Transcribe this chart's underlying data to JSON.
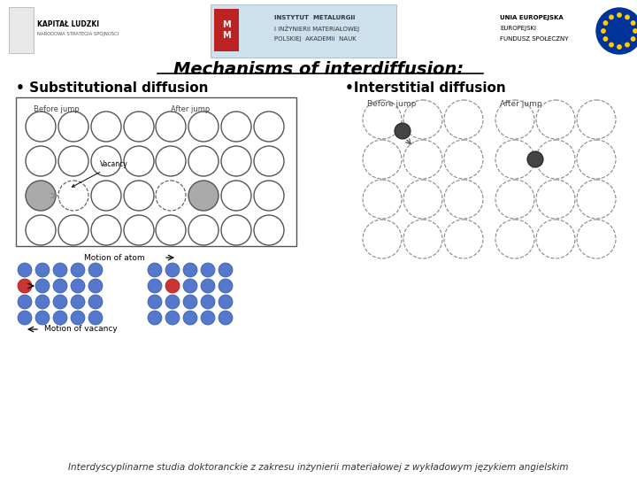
{
  "title": "Mechanisms of interdiffusion:",
  "subtitle_left": "• Substitutional diffusion",
  "subtitle_right": "•Interstitial diffusion",
  "footer": "Interdyscyplinarne studia doktoranckie z zakresu inżynierii materiałowej z wykładowym językiem angielskim",
  "bg_color": "#ffffff",
  "title_fontsize": 14,
  "subtitle_fontsize": 11,
  "footer_fontsize": 7.5
}
